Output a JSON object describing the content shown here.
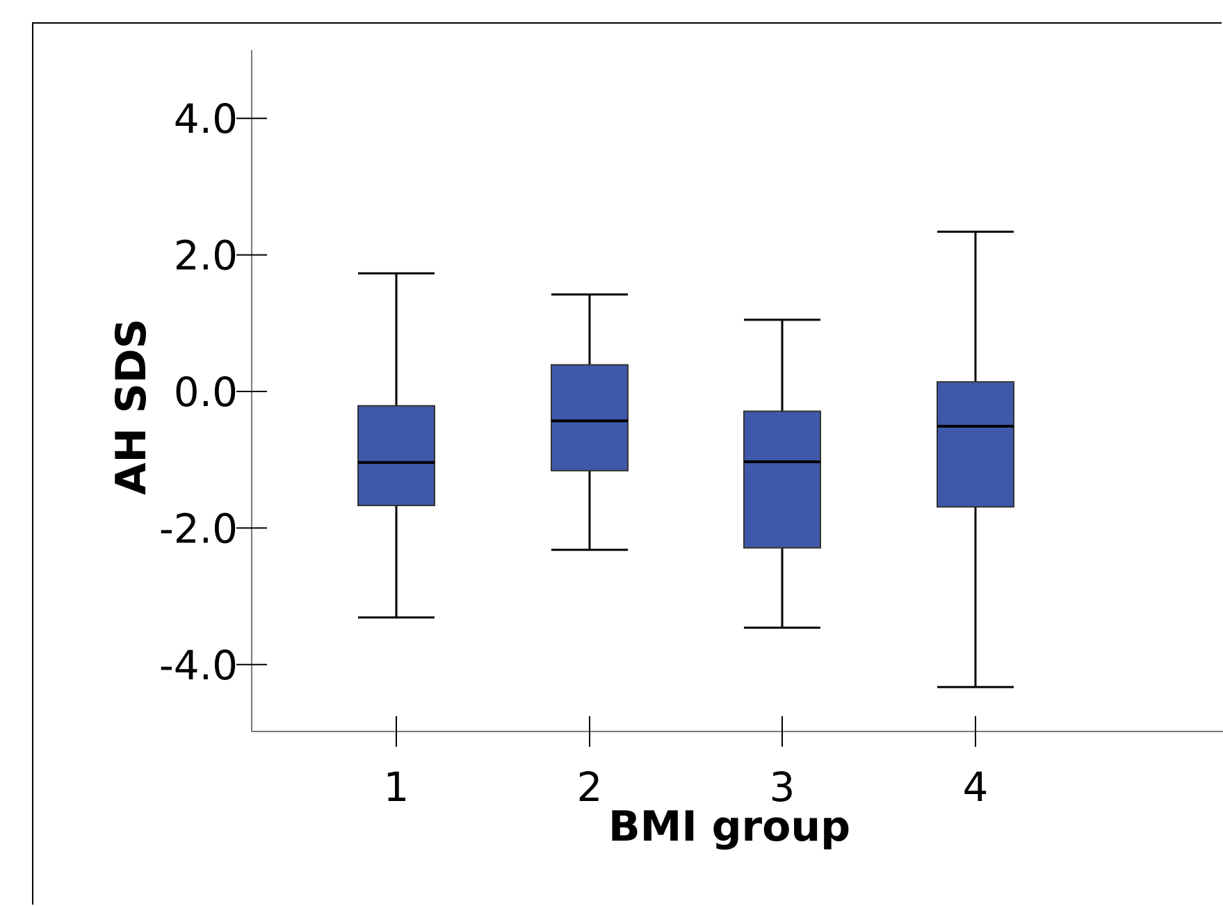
{
  "chart_data": {
    "type": "boxplot",
    "title": "",
    "xlabel": "BMI group",
    "ylabel": "AH SDS",
    "ylim": [
      -4.98,
      5.0
    ],
    "yticks": [
      {
        "value": 4.0,
        "label": "4.0"
      },
      {
        "value": 2.0,
        "label": "2.0"
      },
      {
        "value": 0.0,
        "label": "0.0"
      },
      {
        "value": -2.0,
        "label": "-2.0"
      },
      {
        "value": -4.0,
        "label": "-4.0"
      }
    ],
    "categories": [
      "1",
      "2",
      "3",
      "4"
    ],
    "boxes": [
      {
        "category": "1",
        "whisker_low": -3.31,
        "q1": -1.67,
        "median": -1.04,
        "q3": -0.21,
        "whisker_high": 1.73
      },
      {
        "category": "2",
        "whisker_low": -2.32,
        "q1": -1.16,
        "median": -0.43,
        "q3": 0.39,
        "whisker_high": 1.42
      },
      {
        "category": "3",
        "whisker_low": -3.46,
        "q1": -2.29,
        "median": -1.03,
        "q3": -0.29,
        "whisker_high": 1.05
      },
      {
        "category": "4",
        "whisker_low": -4.33,
        "q1": -1.69,
        "median": -0.51,
        "q3": 0.14,
        "whisker_high": 2.34
      }
    ],
    "box_color": "#3f59aa",
    "grid": false,
    "legend": "none"
  }
}
